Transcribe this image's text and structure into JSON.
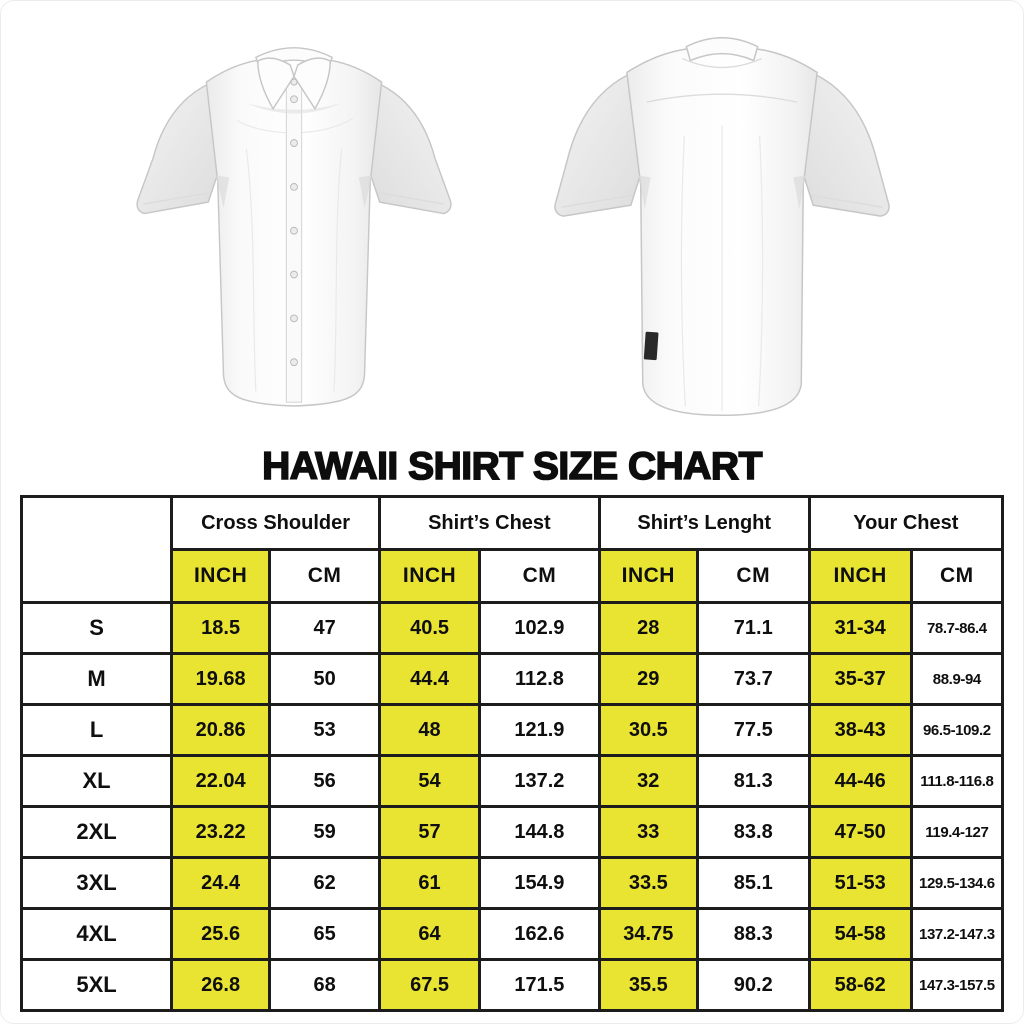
{
  "title": "HAWAII SHIRT SIZE CHART",
  "images": {
    "front_shirt_alt": "white short-sleeve button-up shirt, front view",
    "back_shirt_alt": "white short-sleeve button-up shirt, back view"
  },
  "colors": {
    "highlight_yellow": "#e9e432",
    "table_border": "#1c1c1c",
    "text": "#0f0f0f",
    "page_background": "#ffffff"
  },
  "chart_data": {
    "type": "table",
    "title": "HAWAII SHIRT SIZE CHART",
    "column_groups": [
      "Cross Shoulder",
      "Shirt’s Chest",
      "Shirt’s Lenght",
      "Your Chest"
    ],
    "unit_headers": [
      "INCH",
      "CM",
      "INCH",
      "CM",
      "INCH",
      "CM",
      "INCH",
      "CM"
    ],
    "rows": [
      {
        "size": "S",
        "values": [
          "18.5",
          "47",
          "40.5",
          "102.9",
          "28",
          "71.1",
          "31-34",
          "78.7-86.4"
        ]
      },
      {
        "size": "M",
        "values": [
          "19.68",
          "50",
          "44.4",
          "112.8",
          "29",
          "73.7",
          "35-37",
          "88.9-94"
        ]
      },
      {
        "size": "L",
        "values": [
          "20.86",
          "53",
          "48",
          "121.9",
          "30.5",
          "77.5",
          "38-43",
          "96.5-109.2"
        ]
      },
      {
        "size": "XL",
        "values": [
          "22.04",
          "56",
          "54",
          "137.2",
          "32",
          "81.3",
          "44-46",
          "111.8-116.8"
        ]
      },
      {
        "size": "2XL",
        "values": [
          "23.22",
          "59",
          "57",
          "144.8",
          "33",
          "83.8",
          "47-50",
          "119.4-127"
        ]
      },
      {
        "size": "3XL",
        "values": [
          "24.4",
          "62",
          "61",
          "154.9",
          "33.5",
          "85.1",
          "51-53",
          "129.5-134.6"
        ]
      },
      {
        "size": "4XL",
        "values": [
          "25.6",
          "65",
          "64",
          "162.6",
          "34.75",
          "88.3",
          "54-58",
          "137.2-147.3"
        ]
      },
      {
        "size": "5XL",
        "values": [
          "26.8",
          "68",
          "67.5",
          "171.5",
          "35.5",
          "90.2",
          "58-62",
          "147.3-157.5"
        ]
      }
    ]
  }
}
